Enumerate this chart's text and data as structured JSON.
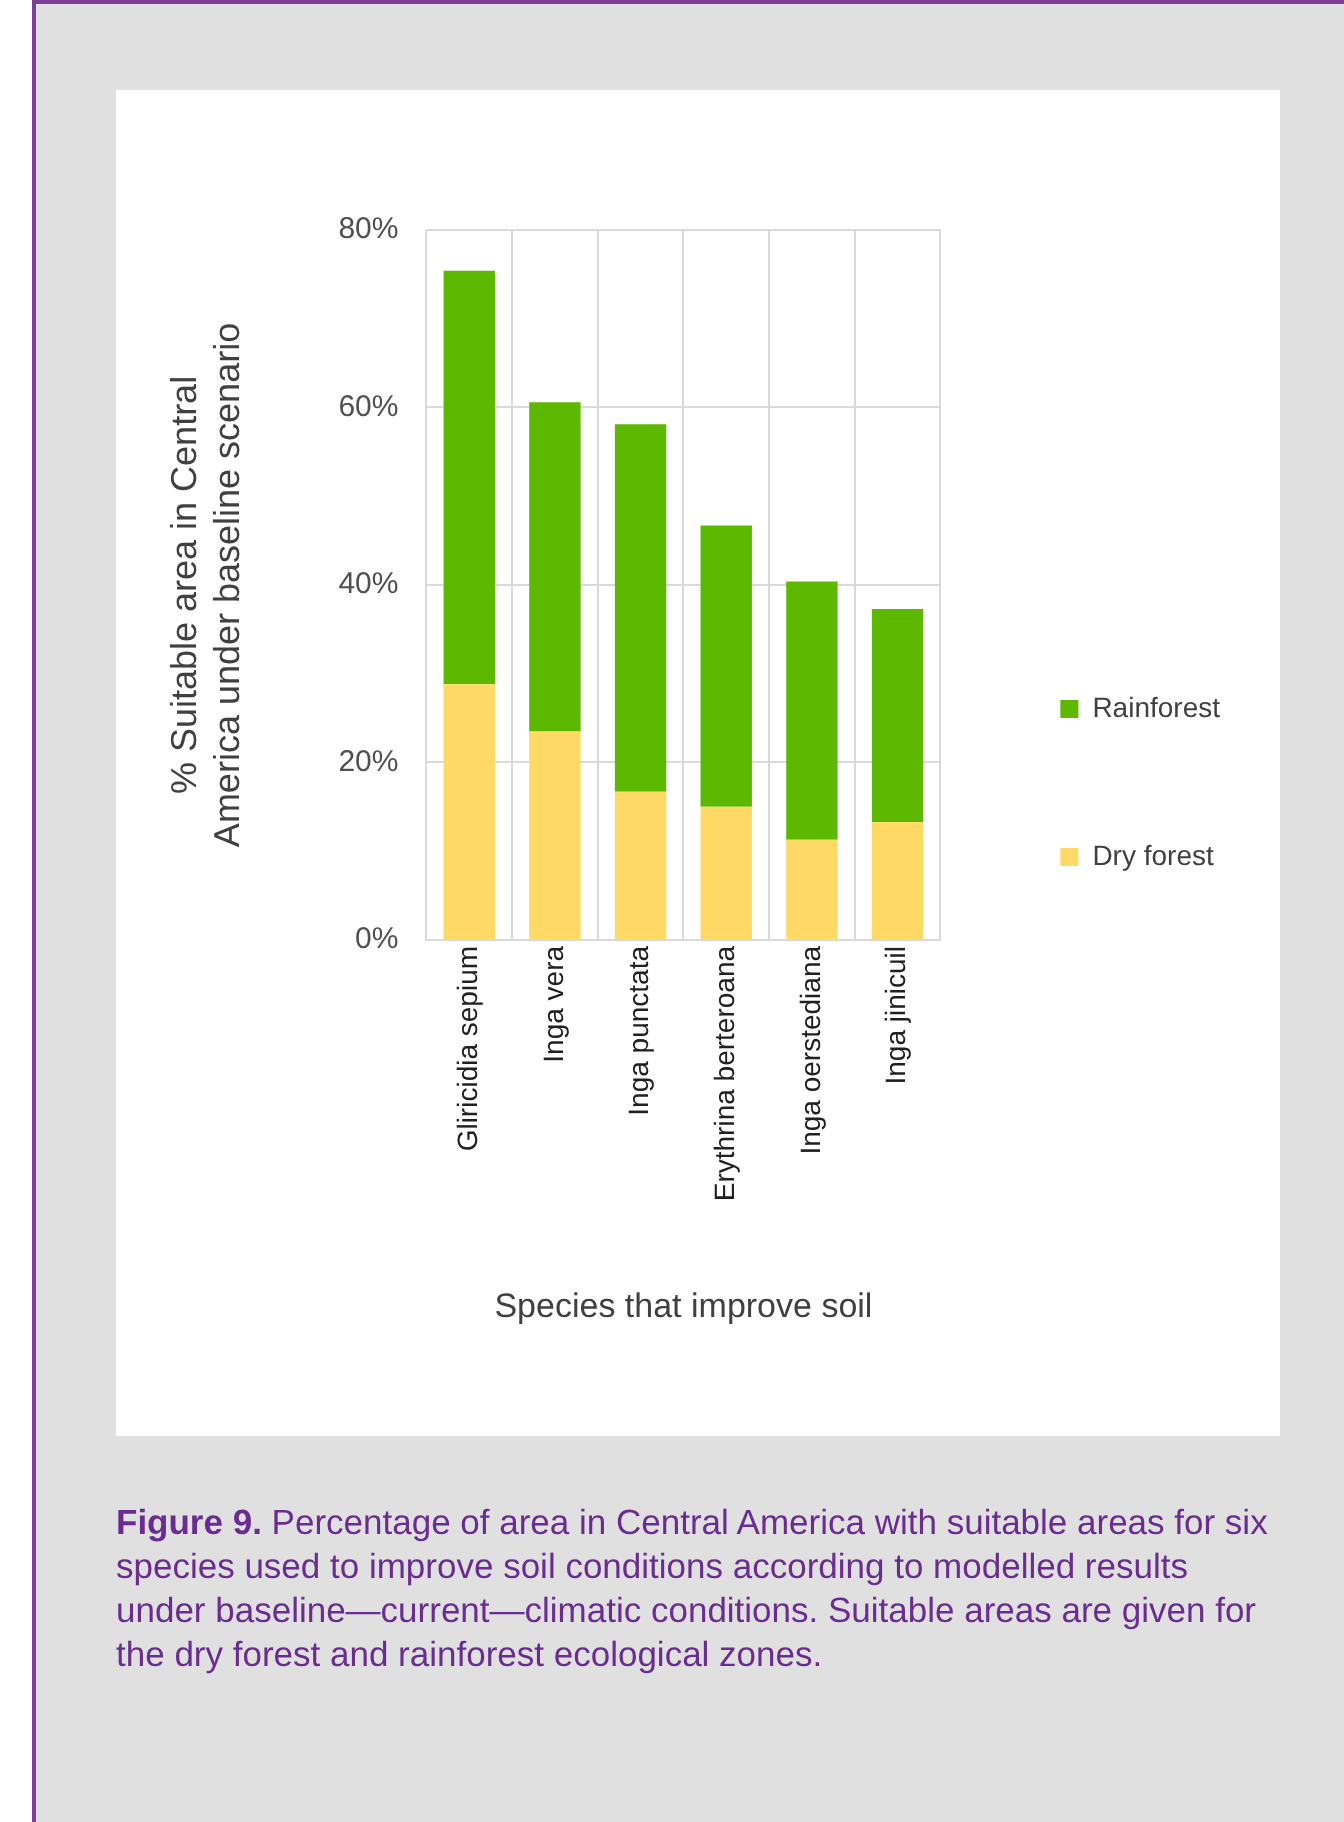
{
  "chart_data": {
    "type": "bar",
    "stacked": true,
    "xlabel": "Species that improve soil",
    "ylabel": "% Suitable area in Central America under baseline scenario",
    "categories": [
      "Gliricidia sepium",
      "Inga vera",
      "Inga punctata",
      "Erythrina berteroana",
      "Inga oerstediana",
      "Inga jinicuil"
    ],
    "series": [
      {
        "name": "Dry forest",
        "color": "#ffd966",
        "values": [
          28.8,
          23.5,
          16.7,
          15,
          11.3,
          13.3
        ]
      },
      {
        "name": "Rainforest",
        "color": "#5cb800",
        "values": [
          46.6,
          37.1,
          41.4,
          31.7,
          29.1,
          24
        ]
      }
    ],
    "ylim": [
      0,
      80
    ],
    "yticks": [
      {
        "value": 0,
        "label": "0%"
      },
      {
        "value": 20,
        "label": "20%"
      },
      {
        "value": 40,
        "label": "40%"
      },
      {
        "value": 60,
        "label": "60%"
      },
      {
        "value": 80,
        "label": "80%"
      }
    ],
    "grid": true,
    "legend": "right",
    "annotations": [
      "Figure 9. Percentage of area in Central America with suitable areas for six species used to improve soil conditions according to modelled results under baseline—current—climatic conditions. Suitable areas are given for the dry forest and rainforest ecological zones."
    ]
  }
}
